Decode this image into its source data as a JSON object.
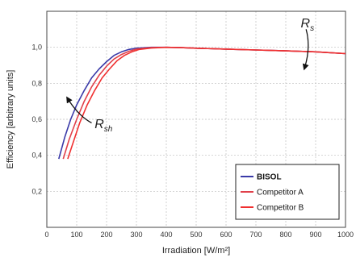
{
  "chart_data": {
    "type": "line",
    "title": "",
    "xlabel": "Irradiation [W/m²]",
    "ylabel": "Efficiency [arbitrary units]",
    "xlim": [
      0,
      1000
    ],
    "ylim": [
      0,
      1.2
    ],
    "xticks": [
      0,
      100,
      200,
      300,
      400,
      500,
      600,
      700,
      800,
      900,
      1000
    ],
    "xtick_labels": [
      "0",
      "100",
      "200",
      "300",
      "400",
      "500",
      "600",
      "700",
      "800",
      "900",
      "1000"
    ],
    "yticks": [
      0.2,
      0.4,
      0.6,
      0.8,
      1.0
    ],
    "ytick_labels": [
      "0,2",
      "0,4",
      "0,6",
      "0,8",
      "1,0"
    ],
    "grid": true,
    "legend_position": "bottom-right",
    "series": [
      {
        "name": "BISOL",
        "color": "#3a3aa8",
        "x": [
          40,
          60,
          80,
          100,
          125,
          150,
          175,
          200,
          225,
          250,
          275,
          300,
          350,
          400,
          450,
          500,
          600,
          700,
          800,
          900,
          1000
        ],
        "y": [
          0.38,
          0.5,
          0.6,
          0.68,
          0.76,
          0.83,
          0.88,
          0.92,
          0.955,
          0.975,
          0.988,
          0.995,
          1.0,
          1.0,
          0.998,
          0.995,
          0.99,
          0.985,
          0.98,
          0.975,
          0.965
        ]
      },
      {
        "name": "Competitor A",
        "color": "#e0404a",
        "x": [
          55,
          75,
          100,
          125,
          150,
          175,
          200,
          225,
          250,
          275,
          300,
          350,
          400,
          450,
          500,
          600,
          700,
          800,
          900,
          1000
        ],
        "y": [
          0.38,
          0.49,
          0.6,
          0.7,
          0.78,
          0.845,
          0.895,
          0.935,
          0.96,
          0.978,
          0.99,
          0.998,
          1.0,
          0.998,
          0.995,
          0.99,
          0.985,
          0.98,
          0.975,
          0.965
        ]
      },
      {
        "name": "Competitor B",
        "color": "#f03030",
        "x": [
          70,
          90,
          110,
          135,
          160,
          185,
          210,
          235,
          260,
          285,
          310,
          350,
          400,
          450,
          500,
          600,
          700,
          800,
          900,
          1000
        ],
        "y": [
          0.38,
          0.48,
          0.58,
          0.68,
          0.76,
          0.83,
          0.88,
          0.925,
          0.955,
          0.975,
          0.988,
          0.996,
          1.0,
          0.998,
          0.995,
          0.99,
          0.985,
          0.98,
          0.975,
          0.965
        ]
      }
    ],
    "annotations": [
      {
        "main": "R",
        "sub": "s",
        "x": 850,
        "y": 1.11
      },
      {
        "main": "R",
        "sub": "sh",
        "x": 160,
        "y": 0.55
      }
    ]
  }
}
